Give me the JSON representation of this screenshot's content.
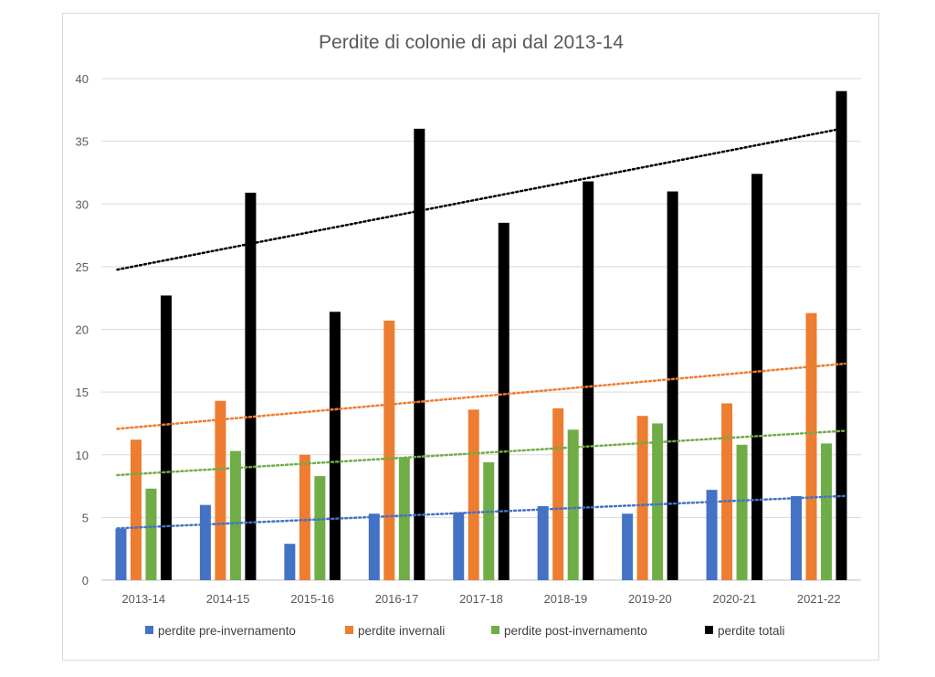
{
  "chart_data": {
    "type": "bar",
    "title": "Perdite di colonie di api dal 2013-14",
    "xlabel": "",
    "ylabel": "",
    "categories": [
      "2013-14",
      "2014-15",
      "2015-16",
      "2016-17",
      "2017-18",
      "2018-19",
      "2019-20",
      "2020-21",
      "2021-22"
    ],
    "yticks": [
      "0",
      "5",
      "10",
      "15",
      "20",
      "25",
      "30",
      "35",
      "40"
    ],
    "ylim": [
      0,
      40
    ],
    "grid": true,
    "legend_position": "bottom",
    "trendlines": "linear, dotted, one per series",
    "series": [
      {
        "name": "perdite pre-invernamento",
        "color": "#4472c4",
        "values": [
          4.1,
          6.0,
          2.9,
          5.3,
          5.4,
          5.9,
          5.3,
          7.2,
          6.7
        ]
      },
      {
        "name": "perdite invernali",
        "color": "#ed7d31",
        "values": [
          11.2,
          14.3,
          10.0,
          20.7,
          13.6,
          13.7,
          13.1,
          14.1,
          21.3
        ]
      },
      {
        "name": "perdite post-invernamento",
        "color": "#70ad47",
        "values": [
          7.3,
          10.3,
          8.3,
          9.8,
          9.4,
          12.0,
          12.5,
          10.8,
          10.9
        ]
      },
      {
        "name": "perdite totali",
        "color": "#000000",
        "values": [
          22.7,
          30.9,
          21.4,
          36.0,
          28.5,
          31.8,
          31.0,
          32.4,
          39.0
        ]
      }
    ]
  }
}
